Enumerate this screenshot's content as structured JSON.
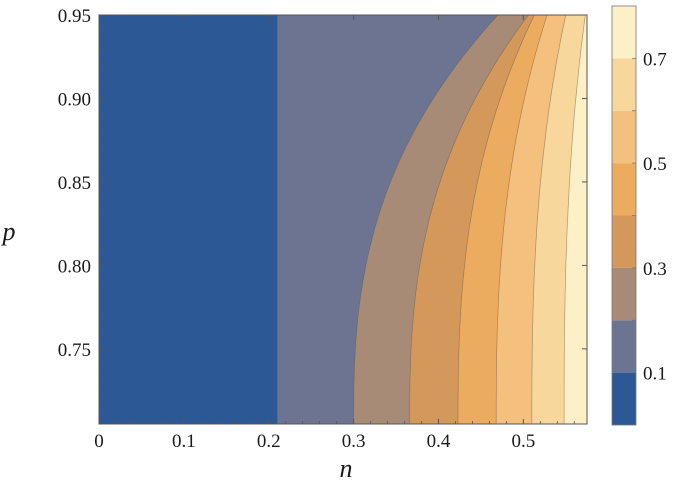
{
  "chart_data": {
    "type": "heatmap",
    "subtype": "contour",
    "title": "",
    "xlabel": "n",
    "ylabel": "p",
    "xlim": [
      0,
      0.575
    ],
    "ylim": [
      0.705,
      0.95
    ],
    "x_ticks": [
      {
        "value": 0,
        "label": "0"
      },
      {
        "value": 0.1,
        "label": "0.1"
      },
      {
        "value": 0.2,
        "label": "0.2"
      },
      {
        "value": 0.3,
        "label": "0.3"
      },
      {
        "value": 0.4,
        "label": "0.4"
      },
      {
        "value": 0.5,
        "label": "0.5"
      }
    ],
    "y_ticks": [
      {
        "value": 0.75,
        "label": "0.75"
      },
      {
        "value": 0.8,
        "label": "0.80"
      },
      {
        "value": 0.85,
        "label": "0.85"
      },
      {
        "value": 0.9,
        "label": "0.90"
      },
      {
        "value": 0.95,
        "label": "0.95"
      }
    ],
    "contour_levels": [
      0.1,
      0.2,
      0.3,
      0.4,
      0.5,
      0.6,
      0.7
    ],
    "boundaries_at_bottom_n": [
      0.21,
      0.3,
      0.366,
      0.423,
      0.468,
      0.51,
      0.548
    ],
    "bottom_band_curvature": [
      0,
      0.17,
      0.14,
      0.09,
      0.06,
      0.04,
      0.025
    ],
    "colorbar": {
      "range": [
        0,
        0.8
      ],
      "tick_labels": [
        {
          "value": 0.1,
          "label": "0.1"
        },
        {
          "value": 0.3,
          "label": "0.3"
        },
        {
          "value": 0.5,
          "label": "0.5"
        },
        {
          "value": 0.7,
          "label": "0.7"
        }
      ]
    },
    "band_colors": [
      "#2c5895",
      "#6c7492",
      "#a88b76",
      "#d4995a",
      "#ebac5f",
      "#f3c07e",
      "#f8d79c",
      "#fdefc6"
    ],
    "grid": false,
    "legend": "colorbar-right"
  }
}
